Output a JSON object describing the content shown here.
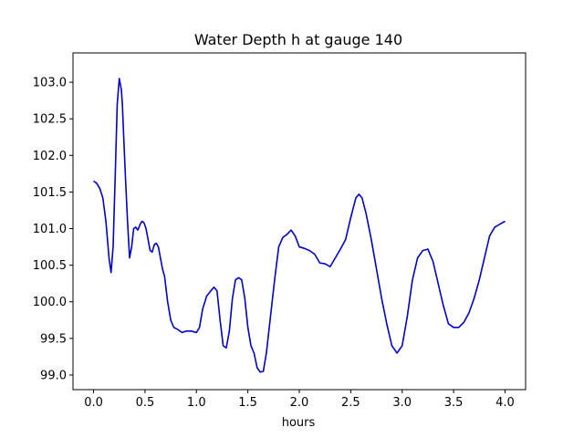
{
  "chart_data": {
    "type": "line",
    "title": "Water Depth h at gauge 140",
    "xlabel": "hours",
    "ylabel": "",
    "xlim": [
      -0.2,
      4.2
    ],
    "ylim": [
      98.8,
      103.4
    ],
    "xticks": [
      0.0,
      0.5,
      1.0,
      1.5,
      2.0,
      2.5,
      3.0,
      3.5,
      4.0
    ],
    "xtick_labels": [
      "0.0",
      "0.5",
      "1.0",
      "1.5",
      "2.0",
      "2.5",
      "3.0",
      "3.5",
      "4.0"
    ],
    "yticks": [
      99.0,
      99.5,
      100.0,
      100.5,
      101.0,
      101.5,
      102.0,
      102.5,
      103.0
    ],
    "ytick_labels": [
      "99.0",
      "99.5",
      "100.0",
      "100.5",
      "101.0",
      "101.5",
      "102.0",
      "102.5",
      "103.0"
    ],
    "grid": false,
    "series": [
      {
        "color": "#0000cc",
        "x": [
          0.0,
          0.03,
          0.06,
          0.09,
          0.12,
          0.15,
          0.17,
          0.19,
          0.21,
          0.23,
          0.25,
          0.27,
          0.28,
          0.29,
          0.31,
          0.33,
          0.35,
          0.37,
          0.39,
          0.41,
          0.43,
          0.45,
          0.47,
          0.49,
          0.51,
          0.53,
          0.55,
          0.57,
          0.59,
          0.61,
          0.63,
          0.65,
          0.67,
          0.69,
          0.72,
          0.75,
          0.78,
          0.82,
          0.86,
          0.9,
          0.95,
          1.0,
          1.03,
          1.06,
          1.1,
          1.14,
          1.17,
          1.2,
          1.23,
          1.26,
          1.29,
          1.32,
          1.35,
          1.38,
          1.41,
          1.44,
          1.47,
          1.5,
          1.53,
          1.56,
          1.59,
          1.62,
          1.65,
          1.68,
          1.72,
          1.76,
          1.8,
          1.84,
          1.88,
          1.92,
          1.96,
          2.0,
          2.05,
          2.1,
          2.15,
          2.2,
          2.25,
          2.3,
          2.35,
          2.4,
          2.45,
          2.5,
          2.55,
          2.58,
          2.61,
          2.65,
          2.7,
          2.75,
          2.8,
          2.85,
          2.9,
          2.95,
          3.0,
          3.05,
          3.1,
          3.15,
          3.2,
          3.25,
          3.3,
          3.35,
          3.4,
          3.45,
          3.5,
          3.55,
          3.6,
          3.65,
          3.7,
          3.75,
          3.8,
          3.85,
          3.9,
          3.95,
          4.0
        ],
        "y": [
          101.65,
          101.62,
          101.55,
          101.42,
          101.1,
          100.6,
          100.4,
          100.75,
          101.7,
          102.7,
          103.05,
          102.9,
          102.7,
          102.35,
          101.7,
          101.1,
          100.6,
          100.75,
          101.0,
          101.02,
          100.98,
          101.05,
          101.1,
          101.08,
          101.0,
          100.85,
          100.7,
          100.68,
          100.78,
          100.8,
          100.75,
          100.6,
          100.45,
          100.35,
          100.0,
          99.75,
          99.65,
          99.62,
          99.58,
          99.6,
          99.6,
          99.58,
          99.65,
          99.9,
          100.08,
          100.15,
          100.2,
          100.15,
          99.75,
          99.4,
          99.37,
          99.6,
          100.05,
          100.3,
          100.33,
          100.3,
          100.05,
          99.65,
          99.4,
          99.3,
          99.1,
          99.04,
          99.05,
          99.3,
          99.8,
          100.3,
          100.75,
          100.88,
          100.92,
          100.98,
          100.9,
          100.75,
          100.73,
          100.7,
          100.65,
          100.53,
          100.52,
          100.48,
          100.6,
          100.72,
          100.85,
          101.15,
          101.42,
          101.47,
          101.42,
          101.2,
          100.85,
          100.45,
          100.05,
          99.7,
          99.4,
          99.3,
          99.4,
          99.8,
          100.3,
          100.6,
          100.7,
          100.72,
          100.55,
          100.25,
          99.95,
          99.7,
          99.65,
          99.65,
          99.72,
          99.85,
          100.05,
          100.3,
          100.6,
          100.9,
          101.02,
          101.06,
          101.1
        ]
      }
    ]
  }
}
